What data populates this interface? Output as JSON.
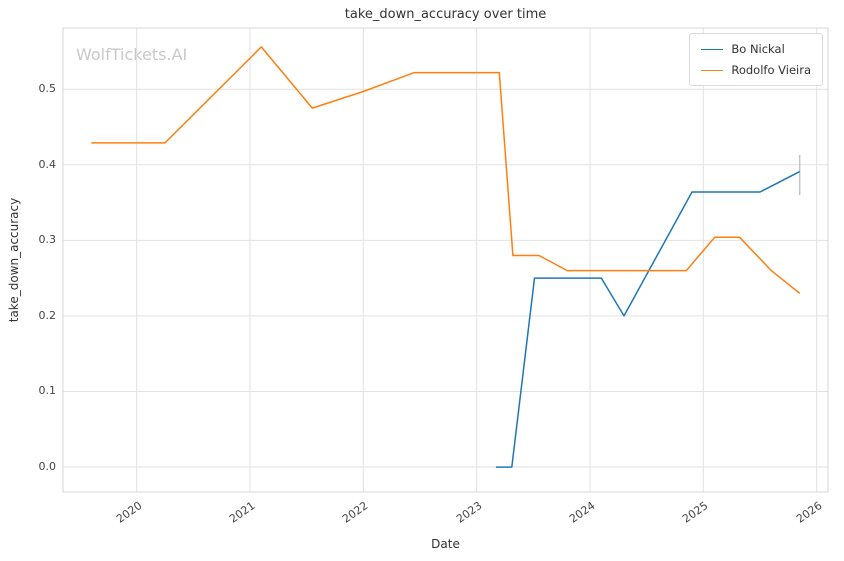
{
  "watermark": "WolfTickets.AI",
  "chart_data": {
    "type": "line",
    "title": "take_down_accuracy over time",
    "xlabel": "Date",
    "ylabel": "take_down_accuracy",
    "xlim": [
      2019.35,
      2026.1
    ],
    "ylim": [
      -0.033,
      0.581
    ],
    "x_ticks": [
      2020,
      2021,
      2022,
      2023,
      2024,
      2025,
      2026
    ],
    "y_ticks": [
      0.0,
      0.1,
      0.2,
      0.3,
      0.4,
      0.5
    ],
    "grid": true,
    "legend_position": "upper right",
    "grid_color": "#e2e2e2",
    "spine_color": "#d7d7d7",
    "series": [
      {
        "name": "Bo Nickal",
        "color": "#1f77b4",
        "x": [
          2023.17,
          2023.31,
          2023.51,
          2024.1,
          2024.3,
          2024.9,
          2025.5,
          2025.85
        ],
        "y": [
          0.0,
          0.0,
          0.25,
          0.25,
          0.2,
          0.364,
          0.364,
          0.391
        ]
      },
      {
        "name": "Rodolfo Vieira",
        "color": "#ff7f0e",
        "x": [
          2019.6,
          2020.25,
          2021.1,
          2021.55,
          2022.0,
          2022.45,
          2023.2,
          2023.32,
          2023.55,
          2023.8,
          2024.85,
          2025.1,
          2025.32,
          2025.6,
          2025.85
        ],
        "y": [
          0.429,
          0.429,
          0.556,
          0.475,
          0.497,
          0.522,
          0.522,
          0.28,
          0.28,
          0.26,
          0.26,
          0.304,
          0.304,
          0.26,
          0.23
        ]
      }
    ],
    "error_bar": {
      "x": 2025.85,
      "y_low": 0.36,
      "y_high": 0.413,
      "color": "#c0c6cb"
    }
  }
}
